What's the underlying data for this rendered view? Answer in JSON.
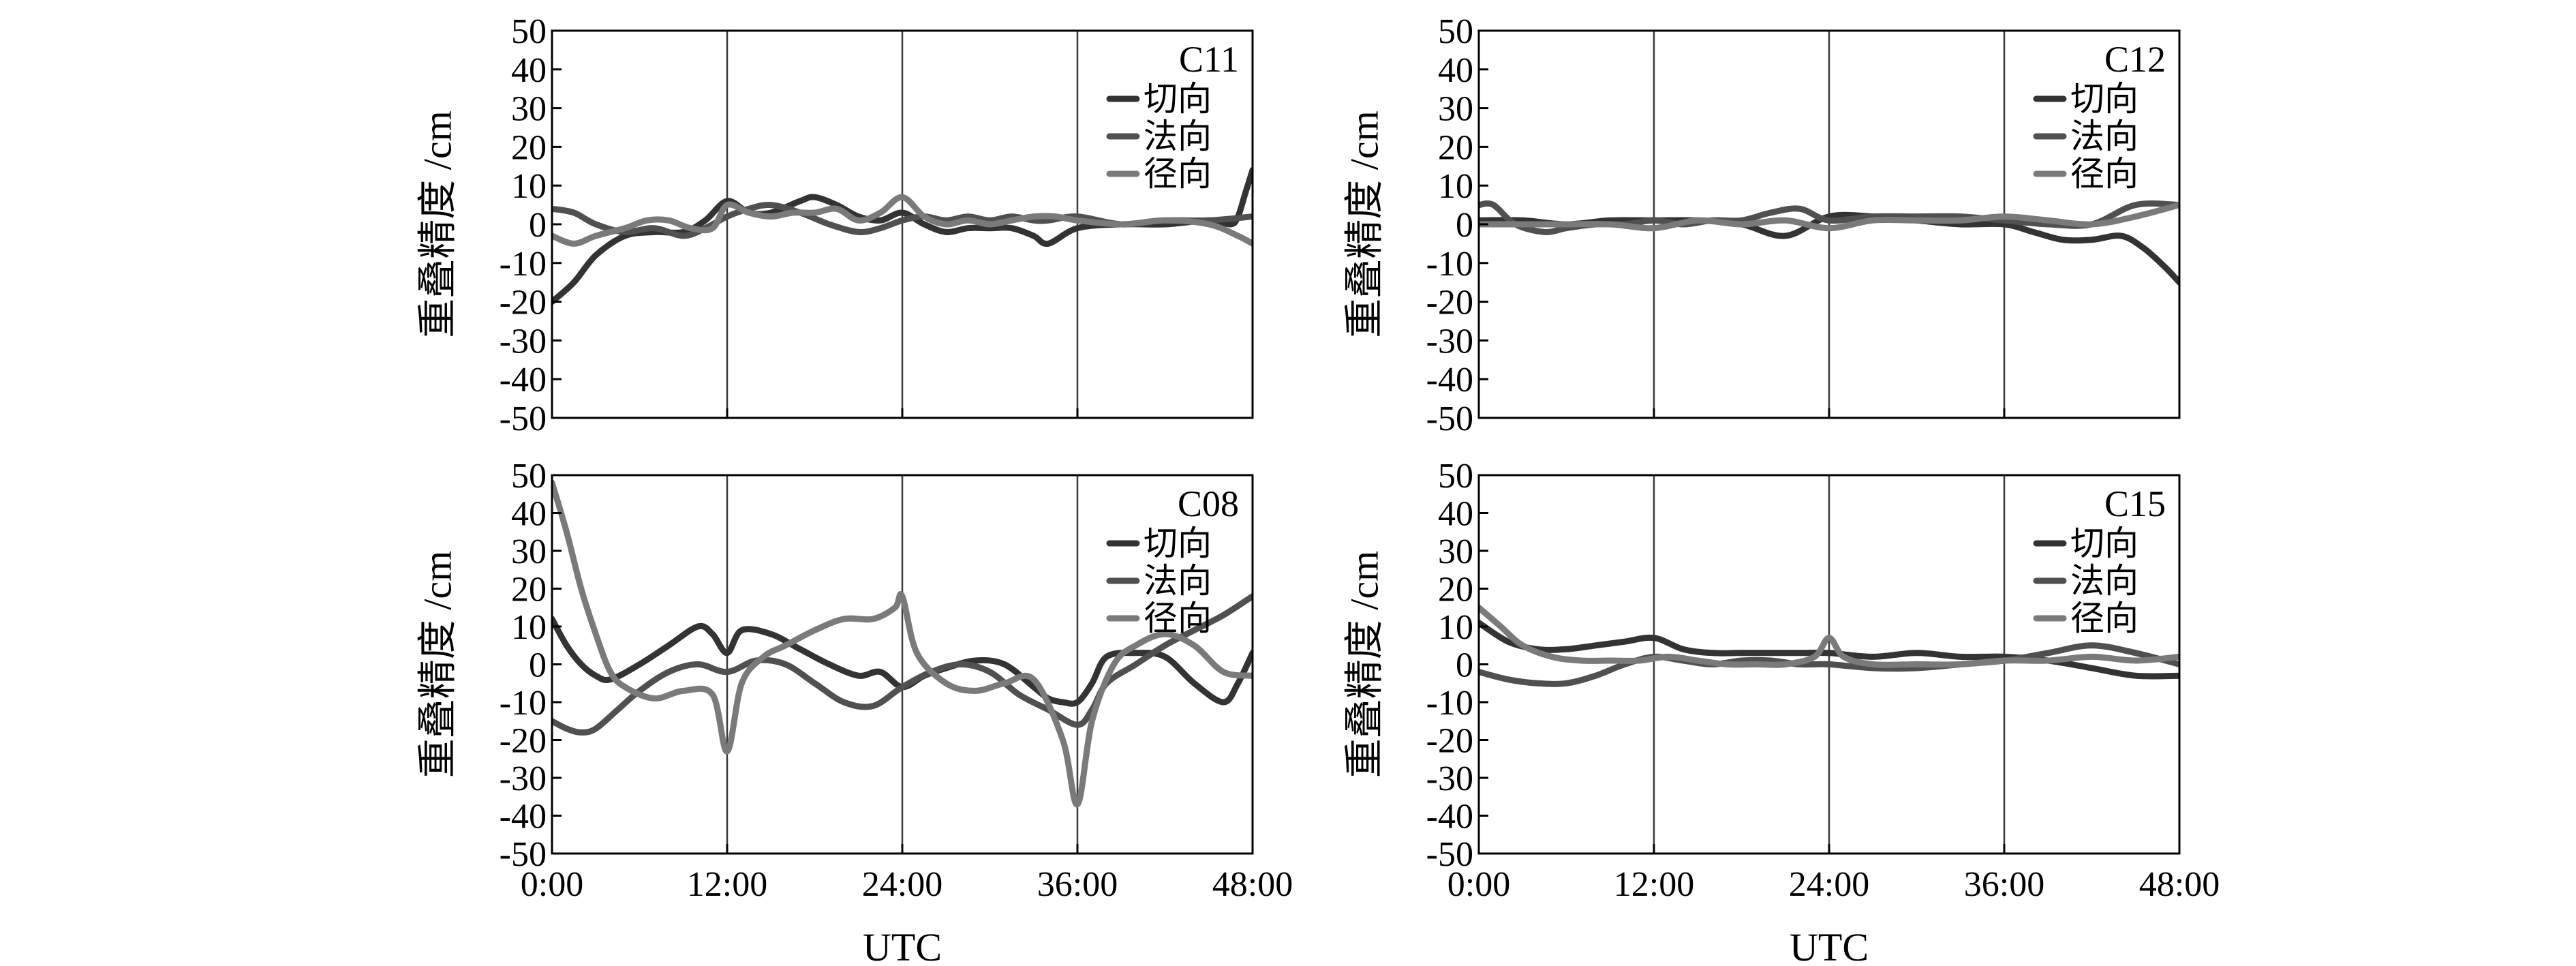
{
  "chart_data": [
    {
      "type": "line",
      "satellite": "C11",
      "ylabel": "重叠精度 /cm",
      "xlabel": "",
      "ylim": [
        -50,
        50
      ],
      "yticks": [
        -50,
        -40,
        -30,
        -20,
        -10,
        0,
        10,
        20,
        30,
        40,
        50
      ],
      "xticks": [
        "0:00",
        "12:00",
        "24:00",
        "36:00",
        "48:00"
      ],
      "show_xtick_labels": false,
      "vlines_hours": [
        12,
        24,
        36
      ],
      "legend_position": "top-right",
      "series": [
        {
          "name": "切向",
          "color": "#333333",
          "x": [
            0,
            1.5,
            3,
            5,
            7,
            9,
            10.5,
            12,
            13.5,
            15,
            17,
            18,
            19.5,
            21,
            22.5,
            24,
            25.5,
            27,
            28.5,
            30,
            31.5,
            33,
            34,
            36,
            39,
            42,
            45,
            46.5,
            47,
            47.5,
            48
          ],
          "y": [
            -20,
            -15,
            -8,
            -3,
            -2,
            -2,
            1,
            6,
            3,
            3,
            6,
            7,
            5,
            2,
            1,
            3,
            0,
            -2,
            -1,
            -1,
            -1,
            -3,
            -5,
            -1,
            0,
            0,
            1,
            0,
            2,
            8,
            14
          ]
        },
        {
          "name": "法向",
          "color": "#505050",
          "x": [
            0,
            1.5,
            3,
            5,
            7,
            9,
            10.5,
            12,
            13.5,
            15,
            17,
            19,
            21,
            22.5,
            24,
            25.5,
            27,
            28.5,
            30,
            31.5,
            33,
            34,
            36,
            39,
            42,
            45,
            48
          ],
          "y": [
            4,
            3,
            0,
            -2,
            -1,
            -3,
            -1,
            2,
            4,
            5,
            3,
            0,
            -2,
            -1,
            1,
            2,
            1,
            2,
            1,
            2,
            1,
            1,
            2,
            0,
            1,
            1,
            2
          ]
        },
        {
          "name": "径向",
          "color": "#7a7a7a",
          "x": [
            0,
            1.5,
            3,
            5,
            6.5,
            8,
            9.5,
            11,
            12,
            13.5,
            15,
            16.5,
            18,
            19.5,
            21,
            22.5,
            24,
            25.5,
            27,
            28.5,
            30,
            31.5,
            33,
            34.5,
            36,
            39,
            42,
            45,
            47,
            48
          ],
          "y": [
            -3,
            -5,
            -3,
            -1,
            1,
            1,
            -1,
            -1,
            5,
            3,
            2,
            3,
            3,
            4,
            1,
            3,
            7,
            2,
            0,
            1,
            0,
            1,
            2,
            2,
            1,
            0,
            1,
            0,
            -3,
            -5
          ]
        }
      ]
    },
    {
      "type": "line",
      "satellite": "C12",
      "ylabel": "重叠精度 /cm",
      "xlabel": "",
      "ylim": [
        -50,
        50
      ],
      "yticks": [
        -50,
        -40,
        -30,
        -20,
        -10,
        0,
        10,
        20,
        30,
        40,
        50
      ],
      "xticks": [
        "0:00",
        "12:00",
        "24:00",
        "36:00",
        "48:00"
      ],
      "show_xtick_labels": false,
      "vlines_hours": [
        12,
        24,
        36
      ],
      "legend_position": "top-right",
      "series": [
        {
          "name": "切向",
          "color": "#333333",
          "x": [
            0,
            3,
            6,
            9,
            12,
            15,
            18,
            21,
            24,
            27,
            30,
            33,
            36,
            38,
            40,
            42,
            44,
            45.5,
            47,
            48
          ],
          "y": [
            1,
            1,
            0,
            1,
            1,
            1,
            0,
            -3,
            2,
            2,
            1,
            0,
            0,
            -2,
            -4,
            -4,
            -3,
            -6,
            -11,
            -15
          ]
        },
        {
          "name": "法向",
          "color": "#505050",
          "x": [
            0,
            1,
            2.5,
            4.5,
            6,
            8,
            10,
            12,
            14,
            16,
            18,
            20,
            22,
            24,
            27,
            30,
            33,
            36,
            39,
            42,
            45,
            48
          ],
          "y": [
            5,
            5,
            0,
            -2,
            -1,
            0,
            0,
            1,
            0,
            1,
            1,
            3,
            4,
            1,
            2,
            2,
            2,
            1,
            0,
            0,
            5,
            5
          ]
        },
        {
          "name": "径向",
          "color": "#7a7a7a",
          "x": [
            0,
            3,
            6,
            9,
            12,
            15,
            18,
            21,
            24,
            27,
            30,
            33,
            36,
            39,
            42,
            45,
            48
          ],
          "y": [
            0,
            0,
            0,
            0,
            -1,
            1,
            0,
            1,
            -1,
            1,
            1,
            1,
            2,
            1,
            0,
            2,
            5
          ]
        }
      ]
    },
    {
      "type": "line",
      "satellite": "C08",
      "ylabel": "重叠精度 /cm",
      "xlabel": "UTC",
      "ylim": [
        -50,
        50
      ],
      "yticks": [
        -50,
        -40,
        -30,
        -20,
        -10,
        0,
        10,
        20,
        30,
        40,
        50
      ],
      "xticks": [
        "0:00",
        "12:00",
        "24:00",
        "36:00",
        "48:00"
      ],
      "show_xtick_labels": true,
      "vlines_hours": [
        12,
        24,
        36
      ],
      "legend_position": "top-right",
      "series": [
        {
          "name": "切向",
          "color": "#333333",
          "x": [
            0,
            1,
            2,
            3,
            4,
            6,
            8,
            10,
            11,
            12,
            13,
            15,
            17,
            19,
            21,
            22.5,
            24,
            25.5,
            27,
            29,
            31,
            33,
            34,
            35,
            36,
            37,
            38,
            40,
            42,
            44,
            46,
            47,
            48
          ],
          "y": [
            12,
            5,
            0,
            -3,
            -4,
            0,
            5,
            10,
            8,
            3,
            9,
            8,
            4,
            0,
            -3,
            -2,
            -6,
            -3,
            -1,
            1,
            0,
            -6,
            -9,
            -10,
            -10,
            -5,
            2,
            3,
            2,
            -5,
            -10,
            -5,
            3
          ]
        },
        {
          "name": "法向",
          "color": "#505050",
          "x": [
            0,
            1,
            2,
            3,
            4.5,
            6,
            8,
            10,
            12,
            14,
            16,
            18,
            20,
            22,
            24,
            26,
            28,
            30,
            32,
            34,
            36,
            37,
            38,
            40,
            42,
            44,
            46,
            48
          ],
          "y": [
            -15,
            -17,
            -18,
            -17,
            -12,
            -7,
            -2,
            0,
            -2,
            1,
            0,
            -5,
            -10,
            -11,
            -6,
            -2,
            0,
            -2,
            -8,
            -12,
            -16,
            -12,
            -5,
            0,
            5,
            9,
            13,
            18
          ]
        },
        {
          "name": "径向",
          "color": "#7a7a7a",
          "x": [
            0,
            1,
            2,
            3,
            4,
            5,
            7,
            9,
            11,
            12,
            13,
            14.5,
            16,
            18,
            20,
            22,
            23.5,
            24,
            25,
            27,
            29,
            31,
            33,
            35,
            36,
            37,
            38.5,
            40,
            42,
            44,
            46,
            48
          ],
          "y": [
            48,
            35,
            20,
            8,
            -2,
            -6,
            -9,
            -7,
            -8,
            -23,
            -5,
            2,
            5,
            9,
            12,
            12,
            15,
            18,
            3,
            -5,
            -7,
            -5,
            -4,
            -20,
            -37,
            -15,
            0,
            5,
            8,
            5,
            -2,
            -3
          ]
        }
      ]
    },
    {
      "type": "line",
      "satellite": "C15",
      "ylabel": "重叠精度 /cm",
      "xlabel": "UTC",
      "ylim": [
        -50,
        50
      ],
      "yticks": [
        -50,
        -40,
        -30,
        -20,
        -10,
        0,
        10,
        20,
        30,
        40,
        50
      ],
      "xticks": [
        "0:00",
        "12:00",
        "24:00",
        "36:00",
        "48:00"
      ],
      "show_xtick_labels": true,
      "vlines_hours": [
        12,
        24,
        36
      ],
      "legend_position": "top-right",
      "series": [
        {
          "name": "切向",
          "color": "#333333",
          "x": [
            0,
            2,
            4,
            6,
            8,
            10,
            12,
            14,
            16,
            18,
            20,
            22,
            24,
            27,
            30,
            33,
            36,
            39,
            42,
            45,
            48
          ],
          "y": [
            11,
            6,
            4,
            4,
            5,
            6,
            7,
            4,
            3,
            3,
            3,
            3,
            3,
            2,
            3,
            2,
            2,
            1,
            -1,
            -3,
            -3
          ]
        },
        {
          "name": "法向",
          "color": "#505050",
          "x": [
            0,
            2,
            4,
            6,
            8,
            10,
            12,
            14,
            16,
            18,
            20,
            22,
            24,
            27,
            30,
            33,
            36,
            39,
            42,
            45,
            48
          ],
          "y": [
            -2,
            -4,
            -5,
            -5,
            -3,
            0,
            2,
            1,
            0,
            1,
            1,
            0,
            0,
            -1,
            -1,
            0,
            1,
            3,
            5,
            3,
            0
          ]
        },
        {
          "name": "径向",
          "color": "#7a7a7a",
          "x": [
            0,
            1.5,
            3,
            5,
            7,
            9,
            11,
            13,
            15,
            17,
            19,
            21,
            23,
            24,
            25,
            27,
            30,
            33,
            36,
            39,
            42,
            45,
            48
          ],
          "y": [
            15,
            10,
            5,
            2,
            1,
            1,
            1,
            2,
            1,
            0,
            0,
            0,
            2,
            7,
            2,
            0,
            0,
            0,
            1,
            1,
            2,
            1,
            2
          ]
        }
      ]
    }
  ]
}
